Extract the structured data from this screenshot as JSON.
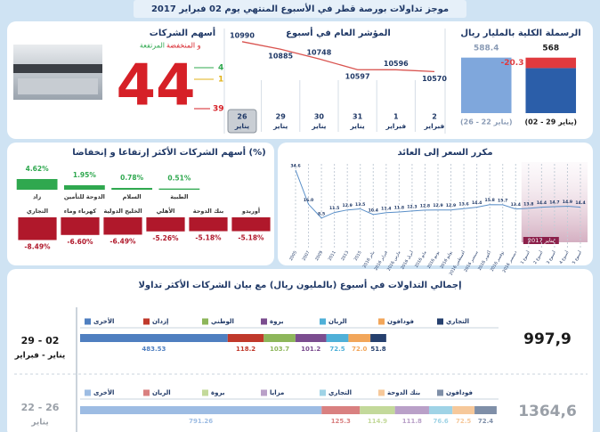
{
  "header": {
    "title": "موجز تداولات بورصة قطر في الأسبوع المنتهي يوم 02 فبراير 2017"
  },
  "breadth": {
    "title": "أسهم الشركات",
    "subtitle_up": "المرتفعة",
    "subtitle_down": "و المنخفضة",
    "total": 44,
    "up": 4,
    "unchanged": 1,
    "down": 39
  },
  "turnover_title": "إجمالي التداولات في أسبوع (بالمليون ريال) مع بيان الشركات الأكثر تداولا",
  "chart_data": [
    {
      "type": "bar",
      "title": "الرسملة الكلية بالمليار ريال",
      "categories": [
        "(يناير 22 - 26)",
        "(يناير 29 - 02)"
      ],
      "values": [
        588.4,
        568
      ],
      "colors": [
        "#7fa7dc",
        "#2b5ea9"
      ],
      "change": -20.3,
      "change_color": "#e03a3e",
      "ylim": [
        480,
        600
      ]
    },
    {
      "type": "line",
      "title": "المؤشر العام في أسبوع",
      "categories": [
        "26",
        "29",
        "30",
        "31",
        "1",
        "2"
      ],
      "category_months": [
        "يناير",
        "يناير",
        "يناير",
        "يناير",
        "فبراير",
        "فبراير"
      ],
      "values": [
        10990,
        10885,
        10748,
        10597,
        10596,
        10570
      ],
      "color": "#d9534f",
      "ylim": [
        10550,
        11000
      ]
    },
    {
      "type": "bar",
      "title": "أسهم الشركات الأكثر إرتفاعا و إنخفاضا (%)",
      "categories": [
        "زاد",
        "الدوحة للتأمين",
        "السلام",
        "الطبية"
      ],
      "values": [
        4.62,
        1.95,
        0.78,
        0.51
      ],
      "value_labels": [
        "4.62%",
        "1.95%",
        "0.78%",
        "0.51%"
      ],
      "color": "#2fa84f",
      "ylim": [
        0,
        5
      ]
    },
    {
      "type": "bar",
      "categories": [
        "التجاري",
        "كهرباء وماء",
        "الخليج الدولية",
        "الأهلي",
        "بنك الدوحة",
        "أوريدو"
      ],
      "values": [
        -8.49,
        -6.6,
        -6.49,
        -5.26,
        -5.18,
        -5.18
      ],
      "value_labels": [
        "-8.49%",
        "-6.60%",
        "-6.49%",
        "-5.26%",
        "-5.18%",
        "-5.18%"
      ],
      "color": "#b0182b",
      "ylim": [
        -9,
        0
      ]
    },
    {
      "type": "line",
      "title": "مكرر السعر إلى العائد",
      "categories": [
        "2005",
        "2007",
        "2009",
        "2011",
        "2013",
        "2015",
        "يناير 2016",
        "فبراير 2016",
        "مارس 2016",
        "أبريل 2016",
        "مايو 2016",
        "يونيو 2016",
        "يوليو 2016",
        "أغسطس 2016",
        "سبتمبر 2016",
        "أكتوبر 2016",
        "نوفمبر 2016",
        "ديسمبر 2016",
        "أسبوع 1",
        "أسبوع 2",
        "أسبوع 3",
        "أسبوع 4",
        "أسبوع 5"
      ],
      "values": [
        34.6,
        16.0,
        8.5,
        11.5,
        12.9,
        13.5,
        10.4,
        11.4,
        11.8,
        12.3,
        12.8,
        12.9,
        12.9,
        13.6,
        14.4,
        15.8,
        15.7,
        13.4,
        13.8,
        14.4,
        14.7,
        14.9,
        14.4
      ],
      "value_labels": [
        "34.6",
        "16.0",
        "8.5",
        "11.5",
        "12.9",
        "13.5",
        "10.4",
        "11.4",
        "11.8",
        "12.3",
        "12.8",
        "12.9",
        "12.9",
        "13.6",
        "14.4",
        "15.8",
        "15.7",
        "13.4",
        "13.8",
        "14.4",
        "14.7",
        "14.9",
        "14.4"
      ],
      "color": "#5a8fc8",
      "ylim": [
        5,
        36
      ],
      "highlight_label": "يناير 2017"
    },
    {
      "type": "stacked-bar",
      "date_range": "29 - 02",
      "date_months": "يناير - فبراير",
      "total": {
        "value": 997.9,
        "label": "997,9"
      },
      "xlim": [
        0,
        1400
      ],
      "series": [
        {
          "name": "الأخرى",
          "color": "#4f7fc0",
          "values": [
            483.53
          ],
          "value_labels": [
            "483.53"
          ]
        },
        {
          "name": "إزدان",
          "color": "#c0392b",
          "values": [
            118.2
          ],
          "value_labels": [
            "118.2"
          ]
        },
        {
          "name": "الوطني",
          "color": "#8db65a",
          "values": [
            103.7
          ],
          "value_labels": [
            "103.7"
          ]
        },
        {
          "name": "بروة",
          "color": "#7b4d8f",
          "values": [
            101.2
          ],
          "value_labels": [
            "101.2"
          ]
        },
        {
          "name": "الريان",
          "color": "#4fb0d8",
          "values": [
            72.5
          ],
          "value_labels": [
            "72.5"
          ]
        },
        {
          "name": "فودافون",
          "color": "#f2a65a",
          "values": [
            72.0
          ],
          "value_labels": [
            "72.0"
          ]
        },
        {
          "name": "التجاري",
          "color": "#26406e",
          "values": [
            51.8
          ],
          "value_labels": [
            "51.8"
          ]
        }
      ]
    },
    {
      "type": "stacked-bar",
      "date_range": "22 - 26",
      "date_months": "يناير",
      "total": {
        "value": 1364.6,
        "label": "1364,6"
      },
      "xlim": [
        0,
        1400
      ],
      "series": [
        {
          "name": "الأخرى",
          "color": "#9dbce3",
          "values": [
            791.26
          ],
          "value_labels": [
            "791.26"
          ]
        },
        {
          "name": "الريان",
          "color": "#d98080",
          "values": [
            125.3
          ],
          "value_labels": [
            "125.3"
          ]
        },
        {
          "name": "بروة",
          "color": "#c3d99a",
          "values": [
            114.9
          ],
          "value_labels": [
            "114.9"
          ]
        },
        {
          "name": "مزايا",
          "color": "#b9a0c8",
          "values": [
            111.8
          ],
          "value_labels": [
            "111.8"
          ]
        },
        {
          "name": "التجاري",
          "color": "#9fd3e6",
          "values": [
            76.6
          ],
          "value_labels": [
            "76.6"
          ]
        },
        {
          "name": "بنك الدوحة",
          "color": "#f6c89a",
          "values": [
            72.5
          ],
          "value_labels": [
            "72.5"
          ]
        },
        {
          "name": "فودافون",
          "color": "#7f8fa8",
          "values": [
            72.4
          ],
          "value_labels": [
            "72.4"
          ]
        }
      ]
    }
  ]
}
